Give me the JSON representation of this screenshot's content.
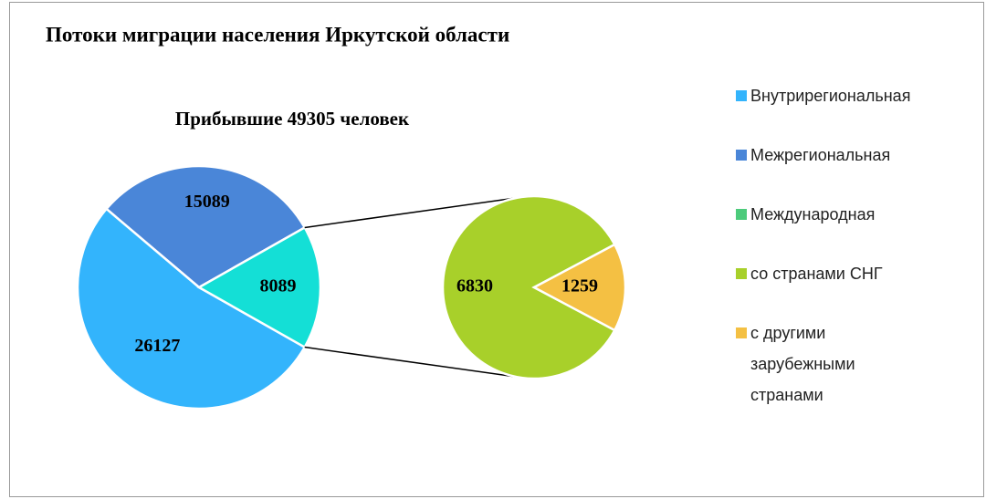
{
  "chart_data": {
    "type": "pie-of-pie",
    "title": "Потоки миграции населения Иркутской области",
    "subtitle": "Прибывшие 49305 человек",
    "categories": [
      "Внутрирегиональная",
      "Межрегиональная",
      "Международная"
    ],
    "values": [
      26127,
      15089,
      8089
    ],
    "colors": [
      "#33b4fc",
      "#4a86d8",
      "#14dfd6"
    ],
    "legend_colors": [
      "#33b4fc",
      "#4a86d8",
      "#4ccb7b"
    ],
    "secondary": {
      "categories": [
        "со странами СНГ",
        "с другими зарубежными странами"
      ],
      "values": [
        6830,
        1259
      ],
      "colors": [
        "#a8d02a",
        "#f4c043"
      ]
    }
  }
}
